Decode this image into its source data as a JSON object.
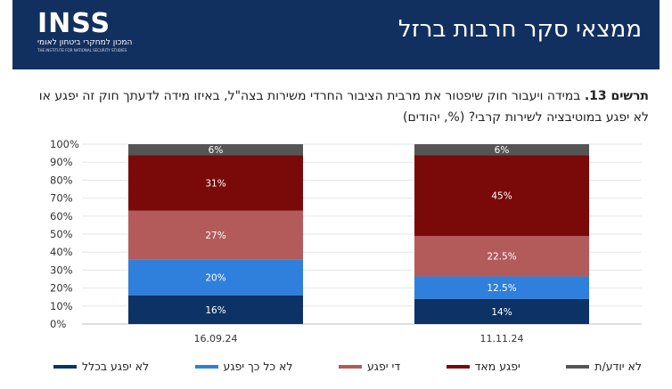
{
  "header": {
    "title": "ממצאי סקר חרבות ברזל",
    "logo": {
      "main": "INSS",
      "sub_he": "המכון למחקרי ביטחון לאומי",
      "sub_en": "THE INSTITUTE FOR NATIONAL SECURITY STUDIES"
    }
  },
  "question": {
    "label": "תרשים 13.",
    "text": "במידה ויעבור חוק שיפטור את מרבית הציבור החרדי משירות בצה\"ל, באיזו מידה לדעתך חוק זה יפגע או לא יפגע במוטיבציה לשירות קרבי? (%, יהודים)"
  },
  "chart_data": {
    "type": "bar",
    "stacked": true,
    "categories": [
      "16.09.24",
      "11.11.24"
    ],
    "series": [
      {
        "name": "לא יפגע בכלל",
        "color": "#0d3366",
        "values": [
          16,
          14
        ],
        "labels": [
          "16%",
          "14%"
        ]
      },
      {
        "name": "לא כל כך יפגע",
        "color": "#2f7fdd",
        "values": [
          20,
          12.5
        ],
        "labels": [
          "20%",
          "12.5%"
        ]
      },
      {
        "name": "די יפגע",
        "color": "#b35a5a",
        "values": [
          27,
          22.5
        ],
        "labels": [
          "27%",
          "22.5%"
        ]
      },
      {
        "name": "יפגע מאד",
        "color": "#7a0a0a",
        "values": [
          31,
          45
        ],
        "labels": [
          "31%",
          "45%"
        ]
      },
      {
        "name": "לא יודע/ת",
        "color": "#555555",
        "values": [
          6,
          6
        ],
        "labels": [
          "6%",
          "6%"
        ]
      }
    ],
    "yticks": [
      "0%",
      "10%",
      "20%",
      "30%",
      "40%",
      "50%",
      "60%",
      "70%",
      "80%",
      "90%",
      "100%"
    ],
    "ylim": [
      0,
      100
    ],
    "grid": true,
    "legend_position": "bottom"
  }
}
